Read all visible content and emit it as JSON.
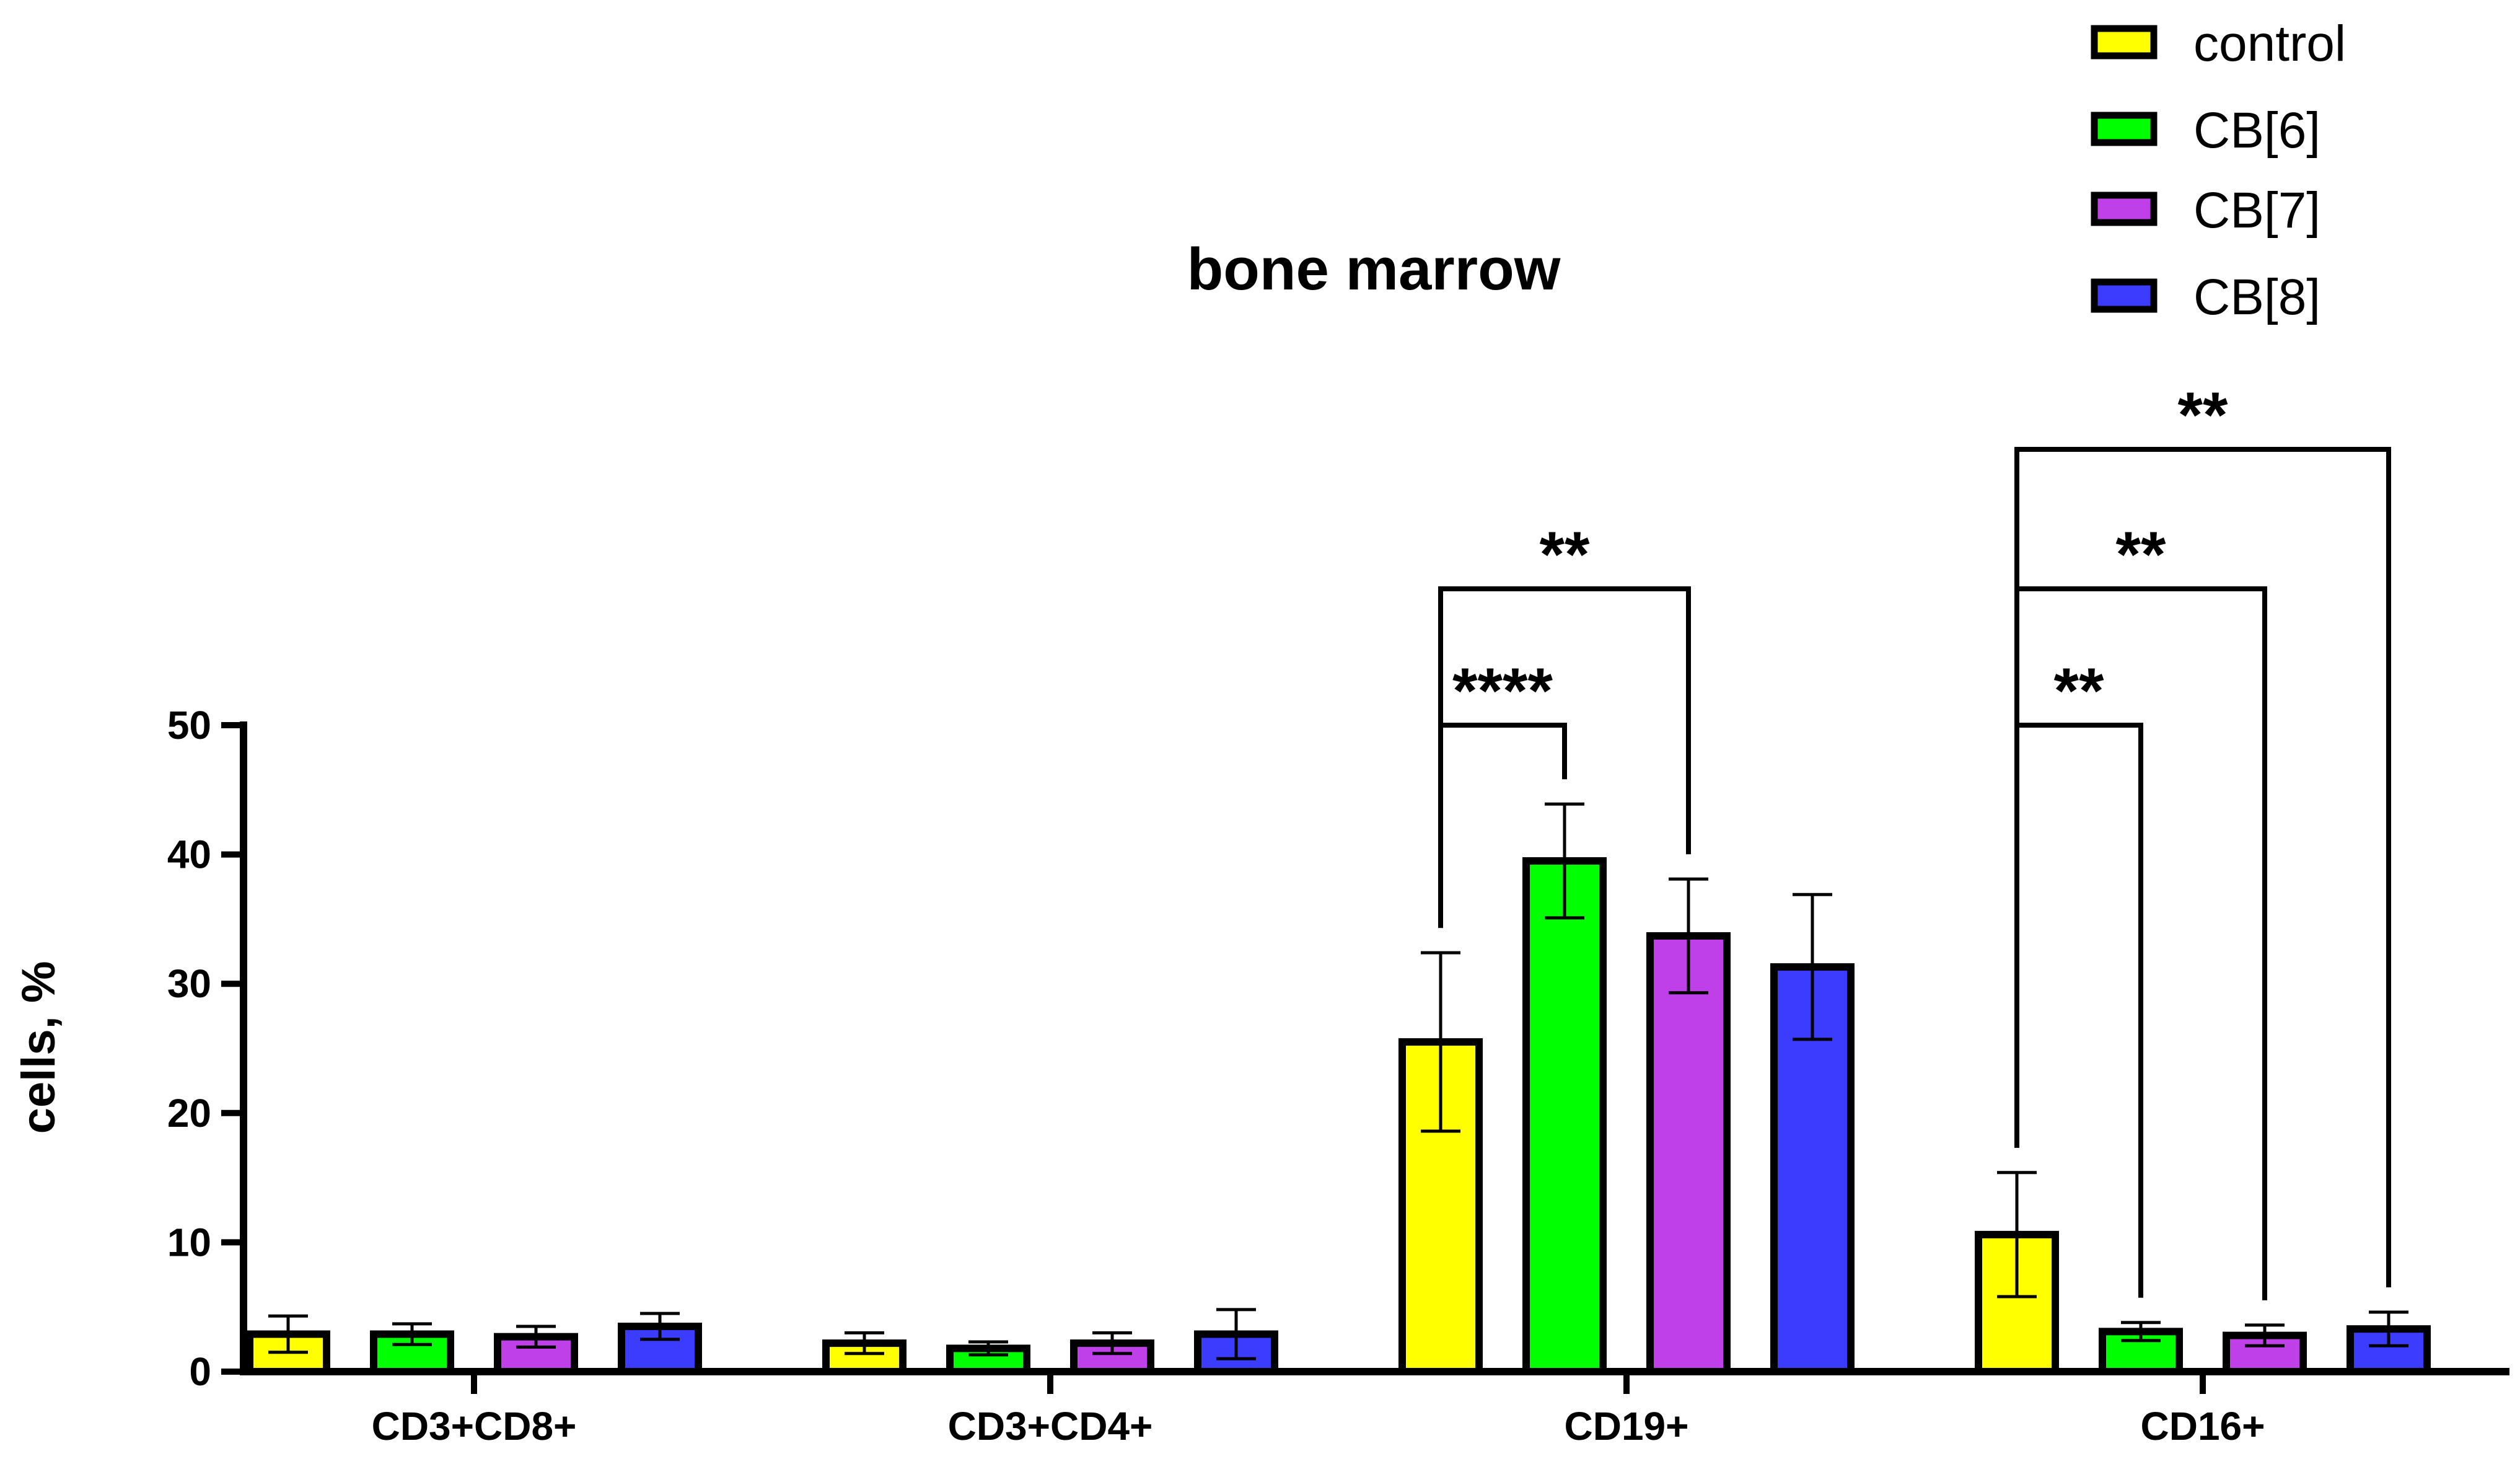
{
  "chart_data": {
    "type": "bar",
    "title": "bone marrow",
    "xlabel": "",
    "ylabel": "cells, %",
    "ylim": [
      0,
      50
    ],
    "yticks": [
      "0",
      "10",
      "20",
      "30",
      "40",
      "50"
    ],
    "categories": [
      "CD3+CD8+",
      "CD3+CD4+",
      "CD19+",
      "CD16+"
    ],
    "series": [
      {
        "name": "control",
        "color": "#ffff00",
        "values": [
          2.9,
          2.2,
          25.5,
          10.6
        ],
        "errors": [
          1.4,
          0.8,
          6.9,
          4.8
        ]
      },
      {
        "name": "CB[6]",
        "color": "#00ff00",
        "values": [
          2.9,
          1.8,
          39.5,
          3.1
        ],
        "errors": [
          0.8,
          0.5,
          4.4,
          0.7
        ]
      },
      {
        "name": "CB[7]",
        "color": "#bf40e8",
        "values": [
          2.7,
          2.2,
          33.7,
          2.8
        ],
        "errors": [
          0.8,
          0.8,
          4.4,
          0.8
        ]
      },
      {
        "name": "CB[8]",
        "color": "#3c3cff",
        "values": [
          3.5,
          2.9,
          31.3,
          3.3
        ],
        "errors": [
          1.0,
          1.9,
          5.6,
          1.3
        ]
      }
    ],
    "significance": [
      {
        "category": 2,
        "from": 0,
        "to": 1,
        "label": "****"
      },
      {
        "category": 2,
        "from": 0,
        "to": 2,
        "label": "**"
      },
      {
        "category": 3,
        "from": 0,
        "to": 1,
        "label": "**"
      },
      {
        "category": 3,
        "from": 0,
        "to": 2,
        "label": "**"
      },
      {
        "category": 3,
        "from": 0,
        "to": 3,
        "label": "**"
      }
    ],
    "legend_position": "top-right",
    "grid": false
  }
}
